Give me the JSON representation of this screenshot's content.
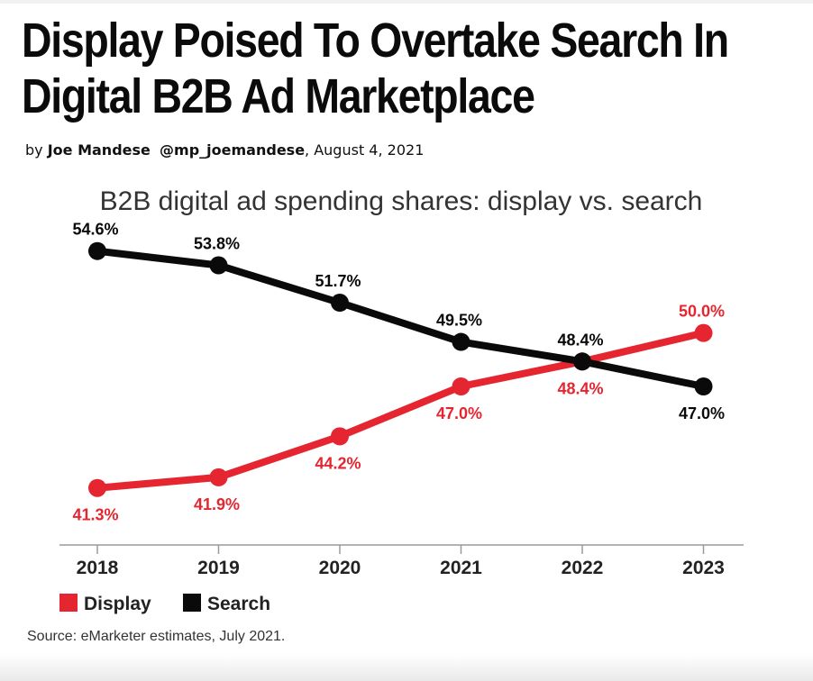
{
  "article": {
    "headline_line1": "Display Poised To Overtake Search In",
    "headline_line2": "Digital B2B Ad Marketplace",
    "byline_prefix": "by",
    "author": "Joe Mandese",
    "handle": "@mp_joemandese",
    "date": "August 4, 2021"
  },
  "chart_data": {
    "type": "line",
    "title": "B2B digital ad spending shares: display vs. search",
    "categories": [
      "2018",
      "2019",
      "2020",
      "2021",
      "2022",
      "2023"
    ],
    "series": [
      {
        "name": "Display",
        "color": "#e52630",
        "values": [
          41.3,
          41.9,
          44.2,
          47.0,
          48.4,
          50.0
        ],
        "labels": [
          "41.3%",
          "41.9%",
          "44.2%",
          "47.0%",
          "48.4%",
          "50.0%"
        ]
      },
      {
        "name": "Search",
        "color": "#0a0a0a",
        "values": [
          54.6,
          53.8,
          51.7,
          49.5,
          48.4,
          47.0
        ],
        "labels": [
          "54.6%",
          "53.8%",
          "51.7%",
          "49.5%",
          "48.4%",
          "47.0%"
        ]
      }
    ],
    "ylim": [
      38,
      56
    ],
    "grid": false,
    "legend": "bottom-left",
    "source": "Source: eMarketer estimates, July 2021."
  }
}
